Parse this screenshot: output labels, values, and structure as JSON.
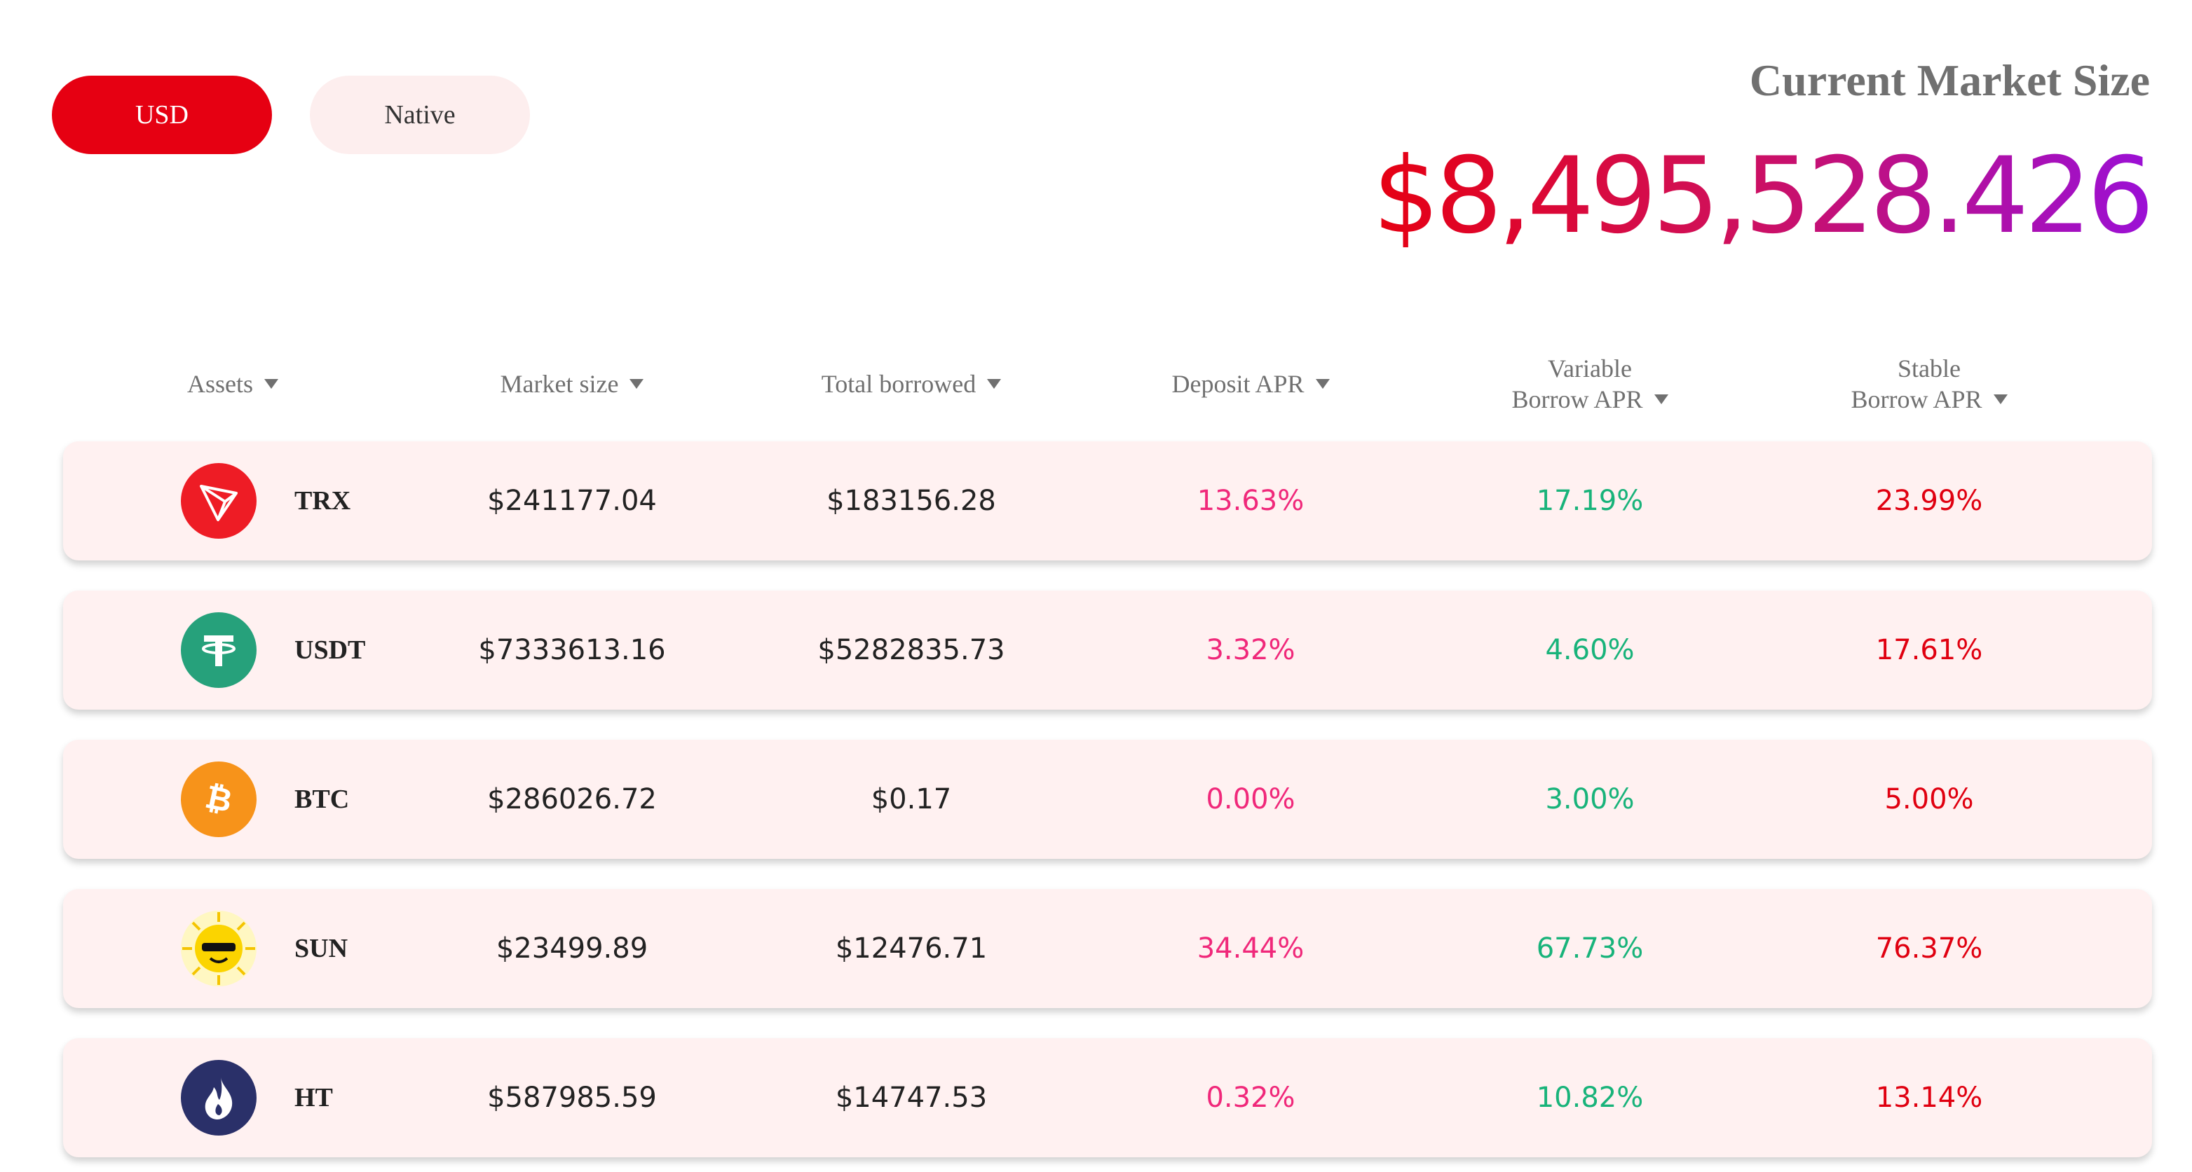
{
  "toggle": {
    "usd_label": "USD",
    "native_label": "Native",
    "selected": "USD"
  },
  "summary": {
    "title": "Current Market Size",
    "value": "$8,495,528.426"
  },
  "table": {
    "headers": {
      "assets": "Assets",
      "market_size": "Market size",
      "total_borrowed": "Total borrowed",
      "deposit_apr": "Deposit APR",
      "variable_line1": "Variable",
      "variable_line2": "Borrow APR",
      "stable_line1": "Stable",
      "stable_line2": "Borrow APR"
    },
    "rows": [
      {
        "symbol": "TRX",
        "icon": "trx-icon",
        "market_size": "$241177.04",
        "total_borrowed": "$183156.28",
        "deposit_apr": "13.63%",
        "variable_apr": "17.19%",
        "stable_apr": "23.99%"
      },
      {
        "symbol": "USDT",
        "icon": "usdt-icon",
        "market_size": "$7333613.16",
        "total_borrowed": "$5282835.73",
        "deposit_apr": "3.32%",
        "variable_apr": "4.60%",
        "stable_apr": "17.61%"
      },
      {
        "symbol": "BTC",
        "icon": "btc-icon",
        "market_size": "$286026.72",
        "total_borrowed": "$0.17",
        "deposit_apr": "0.00%",
        "variable_apr": "3.00%",
        "stable_apr": "5.00%"
      },
      {
        "symbol": "SUN",
        "icon": "sun-icon",
        "market_size": "$23499.89",
        "total_borrowed": "$12476.71",
        "deposit_apr": "34.44%",
        "variable_apr": "67.73%",
        "stable_apr": "76.37%"
      },
      {
        "symbol": "HT",
        "icon": "ht-icon",
        "market_size": "$587985.59",
        "total_borrowed": "$14747.53",
        "deposit_apr": "0.32%",
        "variable_apr": "10.82%",
        "stable_apr": "13.14%"
      }
    ]
  },
  "colors": {
    "accent": "#e60012",
    "deposit_apr": "#f0287a",
    "variable_apr": "#18b37a",
    "stable_apr": "#e00010",
    "row_background": "#fff1f1",
    "trx": "#ee1c25",
    "usdt": "#26a17b",
    "btc": "#f7931a",
    "sun": "#fbd400",
    "ht": "#2a3069"
  }
}
